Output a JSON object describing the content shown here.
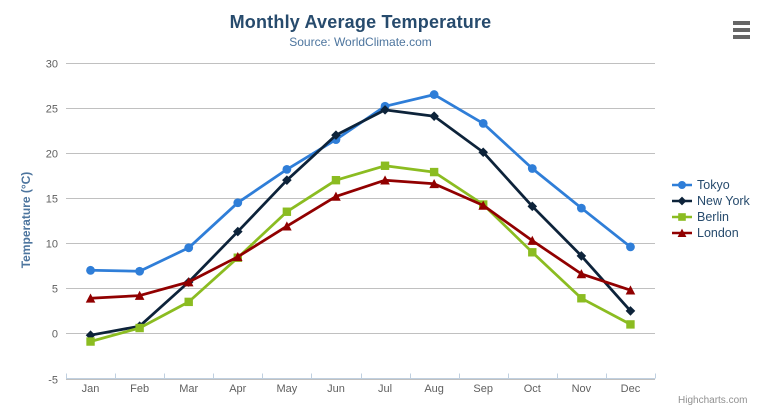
{
  "credits": {
    "label": "Highcharts.com",
    "color": "#909090"
  },
  "export_menu": {
    "name": "chart-context-menu"
  },
  "chart_data": {
    "type": "line",
    "title": "Monthly Average Temperature",
    "subtitle": "Source: WorldClimate.com",
    "categories": [
      "Jan",
      "Feb",
      "Mar",
      "Apr",
      "May",
      "Jun",
      "Jul",
      "Aug",
      "Sep",
      "Oct",
      "Nov",
      "Dec"
    ],
    "xlabel": "",
    "ylabel": "Temperature (°C)",
    "ylim": [
      -5,
      30
    ],
    "yticks": [
      -5,
      0,
      5,
      10,
      15,
      20,
      25,
      30
    ],
    "grid": true,
    "legend_position": "right",
    "series": [
      {
        "name": "Tokyo",
        "color": "#2f7ed8",
        "marker": "circle",
        "values": [
          7.0,
          6.9,
          9.5,
          14.5,
          18.2,
          21.5,
          25.2,
          26.5,
          23.3,
          18.3,
          13.9,
          9.6
        ]
      },
      {
        "name": "New York",
        "color": "#0d233a",
        "marker": "diamond",
        "values": [
          -0.2,
          0.8,
          5.7,
          11.3,
          17.0,
          22.0,
          24.8,
          24.1,
          20.1,
          14.1,
          8.6,
          2.5
        ]
      },
      {
        "name": "Berlin",
        "color": "#8bbc21",
        "marker": "square",
        "values": [
          -0.9,
          0.6,
          3.5,
          8.4,
          13.5,
          17.0,
          18.6,
          17.9,
          14.3,
          9.0,
          3.9,
          1.0
        ]
      },
      {
        "name": "London",
        "color": "#910000",
        "marker": "triangle",
        "values": [
          3.9,
          4.2,
          5.7,
          8.5,
          11.9,
          15.2,
          17.0,
          16.6,
          14.2,
          10.3,
          6.6,
          4.8
        ]
      }
    ],
    "colors": {
      "title": "#274b6d",
      "subtitle": "#4d759e",
      "axis_title": "#4d759e",
      "axis_labels": "#606060",
      "grid": "#c0c0c0",
      "axis_line": "#c0d0e0",
      "legend_text": "#274b6d"
    }
  }
}
